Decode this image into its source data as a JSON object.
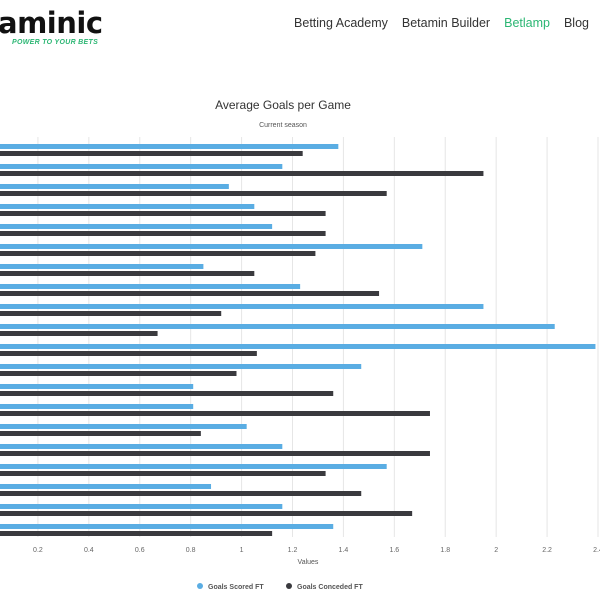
{
  "header": {
    "logo_text": "aminic",
    "tagline": "POWER TO YOUR BETS",
    "nav": [
      {
        "label": "Betting Academy",
        "active": false
      },
      {
        "label": "Betamin Builder",
        "active": false
      },
      {
        "label": "Betlamp",
        "active": true
      },
      {
        "label": "Blog",
        "active": false
      }
    ],
    "accent_color": "#2bb673"
  },
  "chart_data": {
    "type": "bar",
    "orientation": "horizontal",
    "title": "Average Goals per Game",
    "subtitle": "Current season",
    "xlabel": "Values",
    "xlim": [
      0,
      2.4
    ],
    "x_ticks": [
      "0.2",
      "0.4",
      "0.6",
      "0.8",
      "1",
      "1.2",
      "1.4",
      "1.6",
      "1.8",
      "2",
      "2.2",
      "2.4"
    ],
    "grid": true,
    "legend_position": "bottom",
    "series": [
      {
        "name": "Goals Scored FT",
        "color": "#5aade3",
        "values": [
          1.38,
          1.16,
          0.95,
          1.05,
          1.12,
          1.71,
          0.85,
          1.23,
          1.95,
          2.23,
          2.39,
          1.47,
          0.81,
          0.81,
          1.02,
          1.16,
          1.57,
          0.88,
          1.16,
          1.36
        ]
      },
      {
        "name": "Goals Conceded FT",
        "color": "#3a3a3e",
        "values": [
          1.24,
          1.95,
          1.57,
          1.33,
          1.33,
          1.29,
          1.05,
          1.54,
          0.92,
          0.67,
          1.06,
          0.98,
          1.36,
          1.74,
          0.84,
          1.74,
          1.33,
          1.47,
          1.67,
          1.12
        ]
      }
    ]
  }
}
